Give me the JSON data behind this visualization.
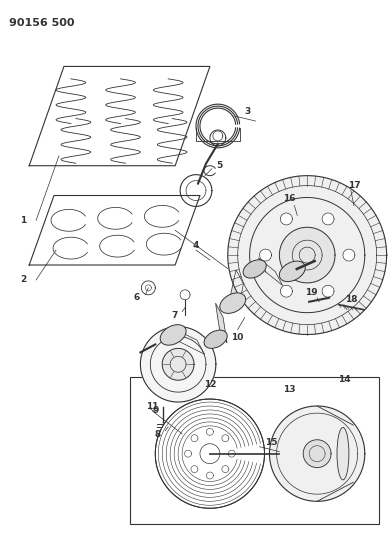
{
  "title": "90156 500",
  "bg_color": "#ffffff",
  "fig_width": 3.91,
  "fig_height": 5.33,
  "dpi": 100,
  "line_color": "#333333",
  "title_fontsize": 8,
  "label_fontsize": 6.5
}
